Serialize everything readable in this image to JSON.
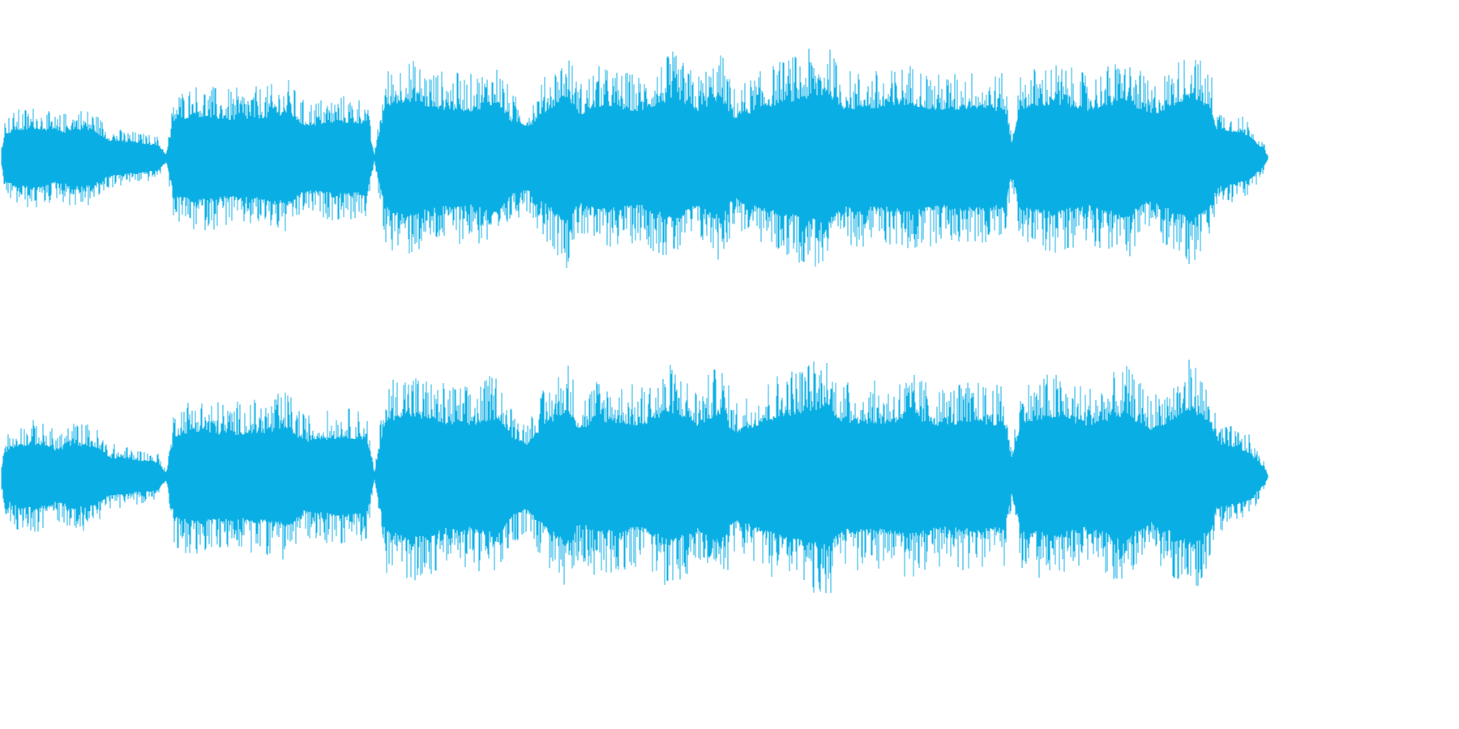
{
  "waveform": {
    "color": "#08aee4",
    "background": "#ffffff",
    "channels": [
      {
        "channel": "top"
      },
      {
        "channel": "bottom"
      }
    ],
    "note": ""
  }
}
